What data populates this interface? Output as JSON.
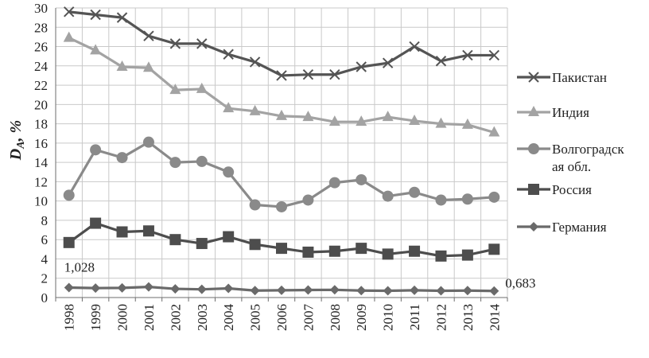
{
  "chart_data": {
    "type": "line",
    "ylabel_main": "D",
    "ylabel_sub": "A",
    "ylabel_unit": ", %",
    "ylim": [
      0,
      30
    ],
    "y_ticks": [
      "0",
      "2",
      "4",
      "6",
      "8",
      "10",
      "12",
      "14",
      "16",
      "18",
      "20",
      "22",
      "24",
      "26",
      "28",
      "30"
    ],
    "grid": true,
    "legend_position": "right",
    "categories": [
      "1998",
      "1999",
      "2000",
      "2001",
      "2002",
      "2003",
      "2004",
      "2005",
      "2006",
      "2007",
      "2008",
      "2009",
      "2010",
      "2011",
      "2012",
      "2013",
      "2014"
    ],
    "series": [
      {
        "name": "Пакистан",
        "color": "#545454",
        "marker": "x",
        "values": [
          29.6,
          29.3,
          29.0,
          27.1,
          26.3,
          26.3,
          25.2,
          24.4,
          23.0,
          23.1,
          23.1,
          23.9,
          24.3,
          26.0,
          24.5,
          25.1,
          25.1
        ]
      },
      {
        "name": "Индия",
        "color": "#a3a3a3",
        "marker": "triangle",
        "values": [
          26.9,
          25.6,
          23.9,
          23.8,
          21.5,
          21.6,
          19.6,
          19.3,
          18.8,
          18.7,
          18.2,
          18.2,
          18.7,
          18.3,
          18.0,
          17.9,
          17.1
        ]
      },
      {
        "name": "Волгоградская обл.",
        "name_lines": [
          "Волгоградск",
          "ая обл."
        ],
        "color": "#8a8a8a",
        "marker": "circle",
        "values": [
          10.6,
          15.3,
          14.5,
          16.1,
          14.0,
          14.1,
          13.0,
          9.6,
          9.4,
          10.1,
          11.9,
          12.2,
          10.5,
          10.9,
          10.1,
          10.2,
          10.4
        ]
      },
      {
        "name": "Россия",
        "color": "#4d4d4d",
        "marker": "square",
        "values": [
          5.7,
          7.7,
          6.8,
          6.9,
          6.0,
          5.6,
          6.3,
          5.5,
          5.1,
          4.7,
          4.8,
          5.1,
          4.5,
          4.8,
          4.3,
          4.4,
          5.0
        ]
      },
      {
        "name": "Германия",
        "color": "#6a6a6a",
        "marker": "diamond",
        "values": [
          1.028,
          0.98,
          1.0,
          1.1,
          0.9,
          0.85,
          0.95,
          0.72,
          0.75,
          0.78,
          0.8,
          0.72,
          0.7,
          0.75,
          0.7,
          0.72,
          0.683
        ]
      }
    ],
    "annotations": [
      {
        "text": "1,028",
        "series": 4,
        "point": 0
      },
      {
        "text": "0,683",
        "series": 4,
        "point": 16
      }
    ]
  }
}
